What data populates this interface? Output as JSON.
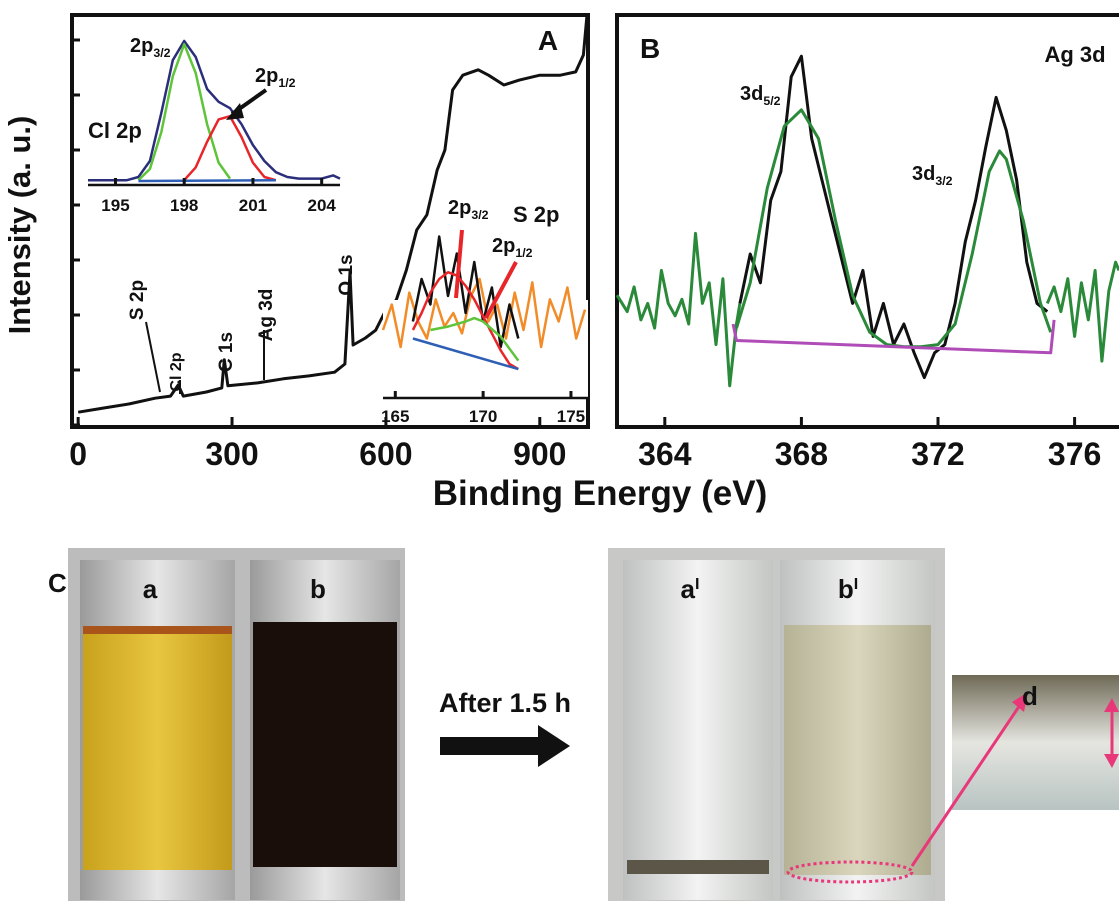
{
  "chart_data": [
    {
      "type": "line",
      "panel": "A",
      "y_label": "Intensity (a. u.)",
      "xlim": [
        -12,
        994
      ],
      "ylim": [
        0,
        100
      ],
      "xticks": [
        0,
        300,
        600,
        900
      ],
      "series": [
        {
          "color": "#111111",
          "x": [
            0,
            50,
            100,
            150,
            180,
            195,
            205,
            250,
            280,
            285,
            292,
            350,
            400,
            450,
            500,
            520,
            530,
            536,
            560,
            580,
            600,
            620,
            640,
            660,
            680,
            700,
            715,
            730,
            750,
            780,
            800,
            830,
            860,
            900,
            940,
            970,
            985,
            992
          ],
          "values": [
            3.6,
            4.6,
            5.6,
            7,
            7.5,
            10.2,
            7.5,
            8.5,
            9.5,
            16.3,
            10,
            10.7,
            11.7,
            12.4,
            13.3,
            15.3,
            37.6,
            19.9,
            21.6,
            23.5,
            28.4,
            30.8,
            38.1,
            47.8,
            51.5,
            62.4,
            67.2,
            81.8,
            85.4,
            86.7,
            85.4,
            83,
            84.2,
            85.4,
            85.4,
            86.2,
            90.3,
            100
          ]
        }
      ],
      "annotations": [
        {
          "text": "A"
        },
        {
          "text": "S 2p"
        },
        {
          "text": "Cl 2p"
        },
        {
          "text": "C 1s"
        },
        {
          "text": "Ag 3d"
        },
        {
          "text": "O 1s"
        }
      ],
      "insets": [
        {
          "type": "line",
          "xlim": [
            193.8,
            204.8
          ],
          "ylim": [
            0,
            100
          ],
          "xticks": [
            195,
            198,
            201,
            204
          ],
          "series": [
            {
              "color": "#2b2e7a",
              "x": [
                193.8,
                194.5,
                195,
                195.5,
                196,
                196.5,
                197,
                197.5,
                198,
                198.5,
                199,
                199.5,
                200,
                200.5,
                201,
                201.5,
                202,
                202.5,
                203,
                203.5,
                204,
                204.5,
                204.8
              ],
              "values": [
                3,
                3,
                3,
                3,
                5,
                15,
                45,
                78,
                90,
                80,
                60,
                52,
                48,
                38,
                25,
                15,
                8,
                5,
                4,
                4,
                4,
                6,
                4
              ]
            },
            {
              "color": "#5ec43a",
              "x": [
                196,
                196.5,
                197,
                197.5,
                198,
                198.5,
                199,
                199.5,
                200
              ],
              "values": [
                3,
                10,
                33,
                68,
                88,
                70,
                38,
                14,
                4
              ]
            },
            {
              "color": "#e8262a",
              "x": [
                198,
                198.5,
                199,
                199.5,
                200,
                200.5,
                201,
                201.5,
                202
              ],
              "values": [
                3,
                11,
                27,
                41,
                43,
                30,
                14,
                5,
                3
              ]
            },
            {
              "color": "#2f5fb5",
              "x": [
                196,
                202
              ],
              "values": [
                2.5,
                3
              ]
            }
          ],
          "annotations": [
            {
              "text": "Cl 2p"
            },
            {
              "text": "2p",
              "sub": "3/2"
            },
            {
              "text": "2p",
              "sub": "1/2"
            }
          ]
        },
        {
          "type": "line",
          "xlim": [
            164.3,
            175.8
          ],
          "ylim": [
            0,
            100
          ],
          "xticks": [
            165,
            170,
            175
          ],
          "series": [
            {
              "color": "#f28c28",
              "x": [
                164.3,
                164.8,
                165.3,
                165.8,
                166.3,
                166.8,
                167.3,
                167.8,
                168.3,
                168.8,
                169.3,
                169.8,
                170.3,
                170.8,
                171.3,
                171.8,
                172.3,
                172.8,
                173.3,
                173.8,
                174.3,
                174.8,
                175.3,
                175.8
              ],
              "values": [
                40,
                55,
                30,
                62,
                45,
                35,
                58,
                42,
                50,
                38,
                60,
                70,
                45,
                55,
                35,
                62,
                40,
                68,
                30,
                58,
                45,
                65,
                35,
                52
              ]
            },
            {
              "color": "#111111",
              "x": [
                166,
                166.5,
                167,
                167.5,
                168,
                168.5,
                169,
                169.5,
                170,
                170.5,
                171,
                171.5,
                172
              ],
              "values": [
                45,
                70,
                55,
                95,
                60,
                85,
                50,
                80,
                45,
                65,
                30,
                55,
                35
              ]
            },
            {
              "color": "#e8262a",
              "x": [
                166,
                166.5,
                167,
                167.5,
                168,
                168.5,
                169,
                169.5,
                170,
                170.5,
                171,
                171.5,
                172
              ],
              "values": [
                40,
                50,
                62,
                70,
                74,
                72,
                66,
                58,
                48,
                38,
                28,
                20,
                17
              ]
            },
            {
              "color": "#5ec43a",
              "x": [
                167,
                168,
                169,
                169.5,
                170,
                171,
                172
              ],
              "values": [
                40,
                42,
                45,
                47,
                45,
                36,
                22
              ]
            },
            {
              "color": "#2f5fb5",
              "x": [
                166,
                172
              ],
              "values": [
                35,
                17
              ]
            }
          ],
          "annotations": [
            {
              "text": "S 2p"
            },
            {
              "text": "2p",
              "sub": "3/2"
            },
            {
              "text": "2p",
              "sub": "1/2"
            }
          ]
        }
      ]
    },
    {
      "type": "line",
      "panel": "B",
      "xlim": [
        362.6,
        377.3
      ],
      "ylim": [
        0,
        100
      ],
      "xticks": [
        364,
        368,
        372,
        376
      ],
      "series": [
        {
          "color": "#2a8a3a",
          "x": [
            362.6,
            362.9,
            363.1,
            363.3,
            363.5,
            363.7,
            363.9,
            364.1,
            364.3,
            364.5,
            364.7,
            364.9,
            365.1,
            365.3,
            365.5,
            365.7,
            365.9,
            366.1,
            366.2,
            null,
            375.2,
            375.4,
            375.6,
            375.8,
            376.0,
            376.2,
            376.4,
            376.6,
            376.8,
            377.0,
            377.2,
            377.3
          ],
          "values": [
            32,
            28,
            34,
            26,
            30,
            24,
            38,
            30,
            27,
            31,
            25,
            47,
            30,
            35,
            20,
            36,
            10,
            25,
            30,
            null,
            30,
            34,
            28,
            36,
            22,
            35,
            26,
            38,
            16,
            33,
            40,
            38
          ]
        },
        {
          "color": "#111111",
          "x": [
            366.2,
            366.5,
            366.8,
            367.1,
            367.4,
            367.7,
            368.0,
            368.3,
            368.6,
            368.9,
            369.2,
            369.5,
            369.8,
            370.1,
            370.4,
            370.7,
            371.0,
            371.3,
            371.6,
            371.9,
            372.2,
            372.5,
            372.8,
            373.1,
            373.4,
            373.7,
            374.0,
            374.3,
            374.6,
            374.9,
            375.2
          ],
          "values": [
            30,
            42,
            35,
            55,
            62,
            85,
            90,
            70,
            60,
            50,
            40,
            30,
            38,
            22,
            30,
            20,
            25,
            18,
            12,
            18,
            20,
            30,
            45,
            55,
            68,
            80,
            72,
            60,
            40,
            30,
            28
          ]
        },
        {
          "color": "#2a8a3a",
          "x": [
            366.1,
            366.5,
            367,
            367.5,
            368,
            368.5,
            369,
            369.5,
            370,
            370.5,
            371,
            371.5,
            372,
            372.5,
            373,
            373.5,
            373.8,
            374,
            374.5,
            375,
            375.3
          ],
          "values": [
            24,
            35,
            58,
            73,
            77,
            70,
            50,
            32,
            23,
            20,
            19.5,
            19.5,
            20,
            25,
            42,
            62,
            67,
            65,
            50,
            30,
            23
          ]
        },
        {
          "color": "#b04cb8",
          "x": [
            366,
            366.1,
            375.3,
            375.4
          ],
          "values": [
            25,
            21,
            18,
            26
          ]
        }
      ],
      "annotations": [
        {
          "text": "B"
        },
        {
          "text": "Ag 3d"
        },
        {
          "text": "3d",
          "sub": "5/2"
        },
        {
          "text": "3d",
          "sub": "3/2"
        }
      ]
    }
  ],
  "x_label": "Binding Energy (eV)",
  "photo_panel": {
    "label": "C",
    "vials": [
      {
        "text": "a"
      },
      {
        "text": "b"
      },
      {
        "text": "a",
        "sup": "I"
      },
      {
        "text": "b",
        "sup": "I"
      }
    ],
    "arrow_label": "After 1.5 h",
    "zoom_label": "d"
  }
}
